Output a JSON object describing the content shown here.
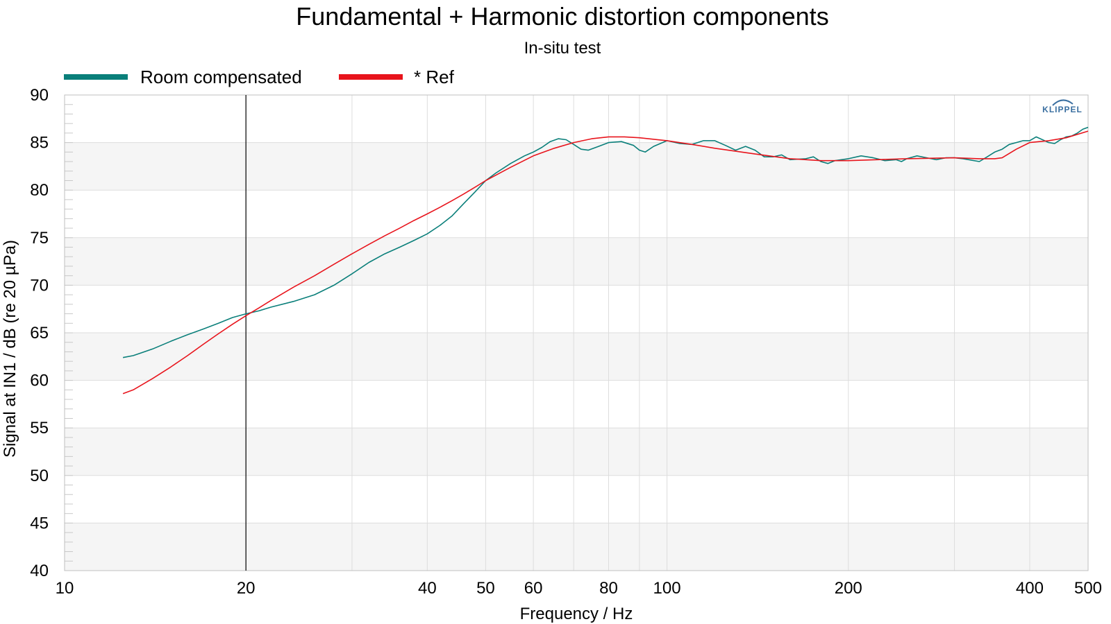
{
  "chart_data": {
    "type": "line",
    "title": "Fundamental + Harmonic distortion components",
    "subtitle": "In-situ test",
    "xlabel": "Frequency / Hz",
    "ylabel": "Signal at IN1 / dB (re 20 µPa)",
    "x_scale": "log",
    "xlim": [
      10,
      500
    ],
    "ylim": [
      40,
      90
    ],
    "x_ticks": [
      10,
      20,
      40,
      50,
      60,
      80,
      100,
      200,
      400,
      500
    ],
    "x_tick_labels": [
      "10",
      "20",
      "40",
      "50",
      "60",
      "80",
      "100",
      "200",
      "400",
      "500"
    ],
    "y_ticks": [
      40,
      45,
      50,
      55,
      60,
      65,
      70,
      75,
      80,
      85,
      90
    ],
    "y_tick_labels": [
      "40",
      "45",
      "50",
      "55",
      "60",
      "65",
      "70",
      "75",
      "80",
      "85",
      "90"
    ],
    "marker_line_x": 20,
    "grid": true,
    "legend_position": "top-left",
    "logo": "KLIPPEL",
    "series": [
      {
        "name": "Room compensated",
        "color": "#0a7f7a",
        "points": [
          [
            12.5,
            62.4
          ],
          [
            13,
            62.6
          ],
          [
            14,
            63.3
          ],
          [
            15,
            64.1
          ],
          [
            16,
            64.8
          ],
          [
            17,
            65.4
          ],
          [
            18,
            66.0
          ],
          [
            19,
            66.6
          ],
          [
            20,
            67.0
          ],
          [
            21,
            67.3
          ],
          [
            22,
            67.7
          ],
          [
            24,
            68.3
          ],
          [
            26,
            69.0
          ],
          [
            28,
            70.0
          ],
          [
            30,
            71.2
          ],
          [
            32,
            72.4
          ],
          [
            34,
            73.3
          ],
          [
            36,
            74.0
          ],
          [
            38,
            74.7
          ],
          [
            40,
            75.4
          ],
          [
            42,
            76.3
          ],
          [
            44,
            77.3
          ],
          [
            46,
            78.6
          ],
          [
            48,
            79.8
          ],
          [
            50,
            81.0
          ],
          [
            52,
            81.8
          ],
          [
            55,
            82.8
          ],
          [
            58,
            83.6
          ],
          [
            60,
            84.0
          ],
          [
            62,
            84.5
          ],
          [
            64,
            85.1
          ],
          [
            66,
            85.4
          ],
          [
            68,
            85.3
          ],
          [
            70,
            84.8
          ],
          [
            72,
            84.3
          ],
          [
            74,
            84.2
          ],
          [
            77,
            84.6
          ],
          [
            80,
            85.0
          ],
          [
            84,
            85.1
          ],
          [
            88,
            84.7
          ],
          [
            90,
            84.2
          ],
          [
            92,
            84.0
          ],
          [
            95,
            84.6
          ],
          [
            100,
            85.2
          ],
          [
            105,
            84.9
          ],
          [
            110,
            84.8
          ],
          [
            115,
            85.2
          ],
          [
            120,
            85.2
          ],
          [
            125,
            84.7
          ],
          [
            130,
            84.2
          ],
          [
            135,
            84.6
          ],
          [
            140,
            84.2
          ],
          [
            145,
            83.5
          ],
          [
            150,
            83.5
          ],
          [
            155,
            83.7
          ],
          [
            160,
            83.2
          ],
          [
            170,
            83.3
          ],
          [
            175,
            83.5
          ],
          [
            180,
            83.0
          ],
          [
            185,
            82.8
          ],
          [
            190,
            83.1
          ],
          [
            200,
            83.3
          ],
          [
            210,
            83.6
          ],
          [
            220,
            83.4
          ],
          [
            230,
            83.1
          ],
          [
            240,
            83.2
          ],
          [
            245,
            83.0
          ],
          [
            250,
            83.3
          ],
          [
            260,
            83.6
          ],
          [
            270,
            83.4
          ],
          [
            280,
            83.2
          ],
          [
            290,
            83.4
          ],
          [
            300,
            83.4
          ],
          [
            310,
            83.3
          ],
          [
            330,
            83.0
          ],
          [
            340,
            83.5
          ],
          [
            350,
            84.0
          ],
          [
            360,
            84.3
          ],
          [
            370,
            84.8
          ],
          [
            380,
            85.0
          ],
          [
            390,
            85.2
          ],
          [
            400,
            85.2
          ],
          [
            410,
            85.6
          ],
          [
            420,
            85.3
          ],
          [
            430,
            85.0
          ],
          [
            440,
            84.9
          ],
          [
            450,
            85.3
          ],
          [
            460,
            85.6
          ],
          [
            470,
            85.7
          ],
          [
            480,
            86.0
          ],
          [
            490,
            86.4
          ],
          [
            500,
            86.6
          ]
        ]
      },
      {
        "name": "* Ref",
        "color": "#e8141c",
        "points": [
          [
            12.5,
            58.6
          ],
          [
            13,
            59.0
          ],
          [
            14,
            60.2
          ],
          [
            15,
            61.4
          ],
          [
            16,
            62.6
          ],
          [
            17,
            63.8
          ],
          [
            18,
            64.9
          ],
          [
            19,
            65.9
          ],
          [
            20,
            66.8
          ],
          [
            21,
            67.6
          ],
          [
            22,
            68.4
          ],
          [
            24,
            69.8
          ],
          [
            26,
            71.0
          ],
          [
            28,
            72.2
          ],
          [
            30,
            73.3
          ],
          [
            32,
            74.3
          ],
          [
            34,
            75.2
          ],
          [
            36,
            76.0
          ],
          [
            38,
            76.8
          ],
          [
            40,
            77.5
          ],
          [
            42,
            78.2
          ],
          [
            44,
            78.9
          ],
          [
            46,
            79.6
          ],
          [
            48,
            80.3
          ],
          [
            50,
            81.0
          ],
          [
            55,
            82.4
          ],
          [
            60,
            83.6
          ],
          [
            65,
            84.4
          ],
          [
            70,
            85.0
          ],
          [
            75,
            85.4
          ],
          [
            80,
            85.6
          ],
          [
            85,
            85.6
          ],
          [
            90,
            85.5
          ],
          [
            100,
            85.2
          ],
          [
            110,
            84.8
          ],
          [
            120,
            84.4
          ],
          [
            140,
            83.8
          ],
          [
            160,
            83.3
          ],
          [
            180,
            83.1
          ],
          [
            200,
            83.1
          ],
          [
            250,
            83.3
          ],
          [
            300,
            83.4
          ],
          [
            330,
            83.3
          ],
          [
            350,
            83.3
          ],
          [
            360,
            83.4
          ],
          [
            380,
            84.3
          ],
          [
            400,
            85.0
          ],
          [
            430,
            85.2
          ],
          [
            460,
            85.5
          ],
          [
            500,
            86.2
          ]
        ]
      }
    ]
  }
}
